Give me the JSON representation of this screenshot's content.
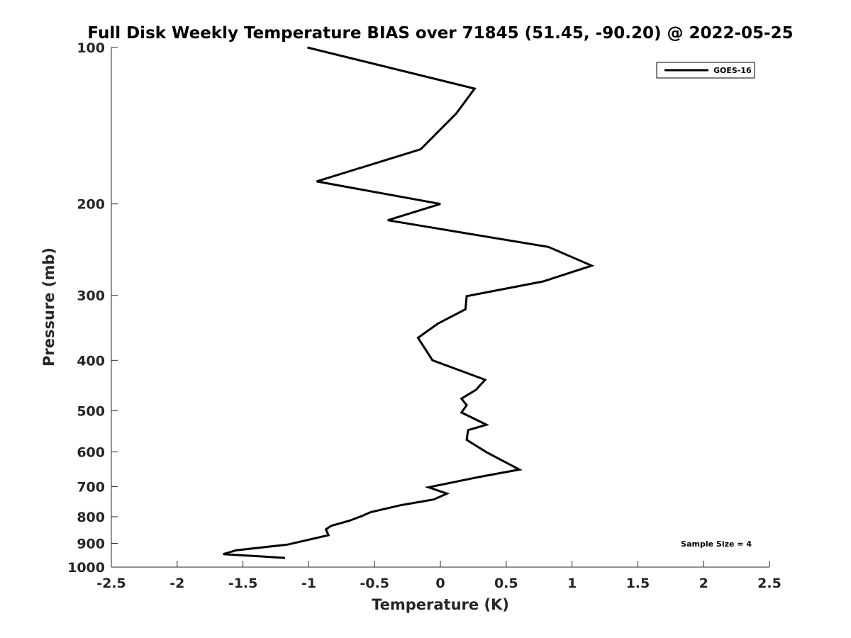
{
  "chart_data": {
    "type": "line",
    "title": "Full Disk Weekly Temperature BIAS over 71845 (51.45, -90.20) @ 2022-05-25",
    "xlabel": "Temperature (K)",
    "ylabel": "Pressure (mb)",
    "xlim": [
      -2.5,
      2.5
    ],
    "ylim": [
      100,
      1000
    ],
    "y_scale": "log",
    "y_reversed": true,
    "grid": false,
    "legend_position": "top-right",
    "x_ticks": [
      -2.5,
      -2,
      -1.5,
      -1,
      -0.5,
      0,
      0.5,
      1,
      1.5,
      2,
      2.5
    ],
    "x_tick_labels": [
      "-2.5",
      "-2",
      "-1.5",
      "-1",
      "-0.5",
      "0",
      "0.5",
      "1",
      "1.5",
      "2",
      "2.5"
    ],
    "y_ticks": [
      100,
      200,
      300,
      400,
      500,
      600,
      700,
      800,
      900,
      1000
    ],
    "y_tick_labels": [
      "100",
      "200",
      "300",
      "400",
      "500",
      "600",
      "700",
      "800",
      "900",
      "1000"
    ],
    "annotation": "Sample Size = 4",
    "series": [
      {
        "name": "GOES-16",
        "color": "#000000",
        "x": [
          -1.01,
          0.26,
          0.12,
          -0.15,
          -0.94,
          0.0,
          -0.4,
          0.82,
          1.15,
          0.78,
          0.2,
          0.19,
          -0.02,
          -0.17,
          -0.06,
          0.34,
          0.27,
          0.16,
          0.2,
          0.16,
          0.35,
          0.21,
          0.2,
          0.35,
          0.6,
          0.29,
          -0.09,
          0.05,
          -0.05,
          -0.3,
          -0.53,
          -0.6,
          -0.69,
          -0.83,
          -0.87,
          -0.85,
          -1.16,
          -1.55,
          -1.65,
          -1.18
        ],
        "y": [
          100,
          120,
          134,
          157,
          181,
          200,
          215,
          242,
          263,
          282,
          301,
          319,
          340,
          362,
          400,
          436,
          456,
          474,
          488,
          504,
          532,
          545,
          569,
          601,
          649,
          671,
          702,
          722,
          741,
          760,
          784,
          798,
          814,
          833,
          846,
          868,
          905,
          928,
          944,
          960
        ]
      }
    ]
  }
}
